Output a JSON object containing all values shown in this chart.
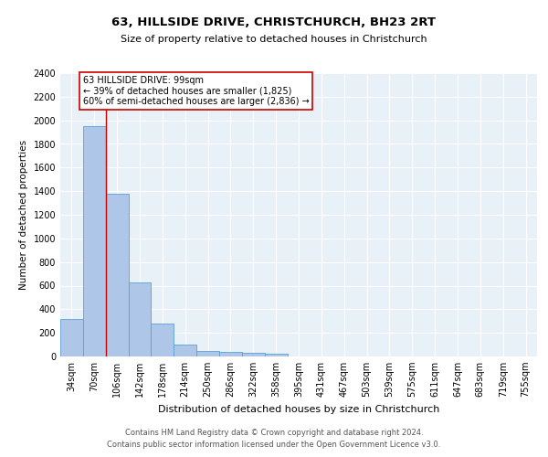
{
  "title": "63, HILLSIDE DRIVE, CHRISTCHURCH, BH23 2RT",
  "subtitle": "Size of property relative to detached houses in Christchurch",
  "xlabel": "Distribution of detached houses by size in Christchurch",
  "ylabel": "Number of detached properties",
  "bar_color": "#aec6e8",
  "bar_edge_color": "#5a9fd4",
  "bg_color": "#e8f0f8",
  "grid_color": "#ffffff",
  "categories": [
    "34sqm",
    "70sqm",
    "106sqm",
    "142sqm",
    "178sqm",
    "214sqm",
    "250sqm",
    "286sqm",
    "322sqm",
    "358sqm",
    "395sqm",
    "431sqm",
    "467sqm",
    "503sqm",
    "539sqm",
    "575sqm",
    "611sqm",
    "647sqm",
    "683sqm",
    "719sqm",
    "755sqm"
  ],
  "values": [
    315,
    1950,
    1380,
    630,
    275,
    100,
    48,
    35,
    30,
    22,
    0,
    0,
    0,
    0,
    0,
    0,
    0,
    0,
    0,
    0,
    0
  ],
  "ylim": [
    0,
    2400
  ],
  "yticks": [
    0,
    200,
    400,
    600,
    800,
    1000,
    1200,
    1400,
    1600,
    1800,
    2000,
    2200,
    2400
  ],
  "annotation_text": "63 HILLSIDE DRIVE: 99sqm\n← 39% of detached houses are smaller (1,825)\n60% of semi-detached houses are larger (2,836) →",
  "annotation_box_color": "#cc0000",
  "footer_line1": "Contains HM Land Registry data © Crown copyright and database right 2024.",
  "footer_line2": "Contains public sector information licensed under the Open Government Licence v3.0.",
  "title_fontsize": 9.5,
  "subtitle_fontsize": 8,
  "xlabel_fontsize": 8,
  "ylabel_fontsize": 7.5,
  "tick_fontsize": 7,
  "annotation_fontsize": 7,
  "footer_fontsize": 6
}
